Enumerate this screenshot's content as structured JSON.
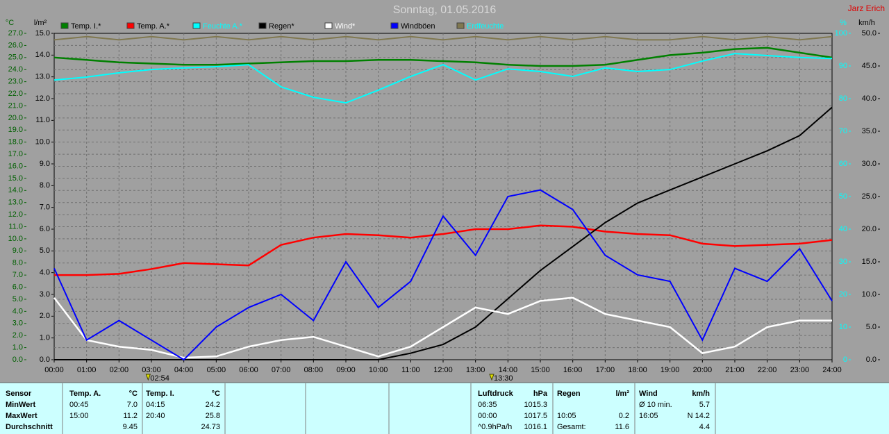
{
  "chart_data": {
    "type": "line",
    "title": "Sonntag, 01.05.2016",
    "author": "Jarz Erich",
    "x": [
      0,
      1,
      2,
      3,
      4,
      5,
      6,
      7,
      8,
      9,
      10,
      11,
      12,
      13,
      14,
      15,
      16,
      17,
      18,
      19,
      20,
      21,
      22,
      23,
      24
    ],
    "xlim": [
      0,
      24
    ],
    "xticks": [
      {
        "value": 0,
        "label": "00:00"
      },
      {
        "value": 1,
        "label": "01:00"
      },
      {
        "value": 2,
        "label": "02:00"
      },
      {
        "value": 3,
        "label": "03:00"
      },
      {
        "value": 4,
        "label": "04:00"
      },
      {
        "value": 5,
        "label": "05:00"
      },
      {
        "value": 6,
        "label": "06:00"
      },
      {
        "value": 7,
        "label": "07:00"
      },
      {
        "value": 8,
        "label": "08:00"
      },
      {
        "value": 9,
        "label": "09:00"
      },
      {
        "value": 10,
        "label": "10:00"
      },
      {
        "value": 11,
        "label": "11:00"
      },
      {
        "value": 12,
        "label": "12:00"
      },
      {
        "value": 13,
        "label": "13:00"
      },
      {
        "value": 14,
        "label": "14:00"
      },
      {
        "value": 15,
        "label": "15:00"
      },
      {
        "value": 16,
        "label": "16:00"
      },
      {
        "value": 17,
        "label": "17:00"
      },
      {
        "value": 18,
        "label": "18:00"
      },
      {
        "value": 19,
        "label": "19:00"
      },
      {
        "value": 20,
        "label": "20:00"
      },
      {
        "value": 21,
        "label": "21:00"
      },
      {
        "value": 22,
        "label": "22:00"
      },
      {
        "value": 23,
        "label": "23:00"
      },
      {
        "value": 24,
        "label": "24:00"
      }
    ],
    "y_label": "°C",
    "ylim": [
      0,
      27
    ],
    "yticks": [
      {
        "value": 27,
        "label": "27.0"
      },
      {
        "value": 26,
        "label": "26.0"
      },
      {
        "value": 25,
        "label": "25.0"
      },
      {
        "value": 24,
        "label": "24.0"
      },
      {
        "value": 23,
        "label": "23.0"
      },
      {
        "value": 22,
        "label": "22.0"
      },
      {
        "value": 21,
        "label": "21.0"
      },
      {
        "value": 20,
        "label": "20.0"
      },
      {
        "value": 19,
        "label": "19.0"
      },
      {
        "value": 18,
        "label": "18.0"
      },
      {
        "value": 17,
        "label": "17.0"
      },
      {
        "value": 16,
        "label": "16.0"
      },
      {
        "value": 15,
        "label": "15.0"
      },
      {
        "value": 14,
        "label": "14.0"
      },
      {
        "value": 13,
        "label": "13.0"
      },
      {
        "value": 12,
        "label": "12.0"
      },
      {
        "value": 11,
        "label": "11.0"
      },
      {
        "value": 10,
        "label": "10.0"
      },
      {
        "value": 9,
        "label": "9.0"
      },
      {
        "value": 8,
        "label": "8.0"
      },
      {
        "value": 7,
        "label": "7.0"
      },
      {
        "value": 6,
        "label": "6.0"
      },
      {
        "value": 5,
        "label": "5.0"
      },
      {
        "value": 4,
        "label": "4.0"
      },
      {
        "value": 3,
        "label": "3.0"
      },
      {
        "value": 2,
        "label": "2.0"
      },
      {
        "value": 1,
        "label": "1.0"
      },
      {
        "value": 0,
        "label": "0.0"
      }
    ],
    "y2_label": "l/m²",
    "y2lim": [
      0,
      15
    ],
    "y2ticks": [
      {
        "value": 15,
        "label": "15.0"
      },
      {
        "value": 14,
        "label": "14.0"
      },
      {
        "value": 13,
        "label": "13.0"
      },
      {
        "value": 12,
        "label": "12.0"
      },
      {
        "value": 11,
        "label": "11.0"
      },
      {
        "value": 10,
        "label": "10.0"
      },
      {
        "value": 9,
        "label": "9.0"
      },
      {
        "value": 8,
        "label": "8.0"
      },
      {
        "value": 7,
        "label": "7.0"
      },
      {
        "value": 6,
        "label": "6.0"
      },
      {
        "value": 5,
        "label": "5.0"
      },
      {
        "value": 4,
        "label": "4.0"
      },
      {
        "value": 3,
        "label": "3.0"
      },
      {
        "value": 2,
        "label": "2.0"
      },
      {
        "value": 1,
        "label": "1.0"
      },
      {
        "value": 0,
        "label": "0.0"
      }
    ],
    "y3_label": "%",
    "y3lim": [
      0,
      100
    ],
    "y3ticks": [
      100,
      90,
      80,
      70,
      60,
      50,
      40,
      30,
      20,
      10,
      0
    ],
    "y4_label": "km/h",
    "y4lim": [
      0,
      50
    ],
    "y4ticks": [
      {
        "value": 50,
        "label": "50.0"
      },
      {
        "value": 45,
        "label": "45.0"
      },
      {
        "value": 40,
        "label": "40.0"
      },
      {
        "value": 35,
        "label": "35.0"
      },
      {
        "value": 30,
        "label": "30.0"
      },
      {
        "value": 25,
        "label": "25.0"
      },
      {
        "value": 20,
        "label": "20.0"
      },
      {
        "value": 15,
        "label": "15.0"
      },
      {
        "value": 10,
        "label": "10.0"
      },
      {
        "value": 5,
        "label": "5.0"
      },
      {
        "value": 0,
        "label": "0.0"
      }
    ],
    "grid": true,
    "annotations": [
      {
        "text": "02:54",
        "x": 2.9
      },
      {
        "text": "13:30",
        "x": 13.5
      }
    ],
    "series": [
      {
        "name": "Temp. I.*",
        "color": "#008000",
        "axis": "y",
        "values": [
          25.0,
          24.8,
          24.6,
          24.5,
          24.4,
          24.4,
          24.5,
          24.6,
          24.7,
          24.7,
          24.8,
          24.8,
          24.7,
          24.6,
          24.4,
          24.3,
          24.3,
          24.4,
          24.8,
          25.2,
          25.4,
          25.7,
          25.8,
          25.4,
          25.0
        ]
      },
      {
        "name": "Temp. A.*",
        "color": "#ff0000",
        "axis": "y",
        "values": [
          7.0,
          7.0,
          7.1,
          7.5,
          8.0,
          7.9,
          7.8,
          9.5,
          10.1,
          10.4,
          10.3,
          10.1,
          10.4,
          10.8,
          10.8,
          11.1,
          11.0,
          10.6,
          10.4,
          10.3,
          9.6,
          9.4,
          9.5,
          9.6,
          9.9
        ]
      },
      {
        "name": "Feuchte A.*",
        "color": "#00ffff",
        "axis": "y3",
        "values": [
          85.7,
          86.6,
          87.9,
          88.9,
          89.4,
          89.8,
          90.4,
          83.6,
          80.4,
          78.7,
          82.6,
          86.8,
          90.4,
          85.7,
          89.1,
          88.3,
          86.8,
          89.4,
          88.3,
          88.9,
          91.5,
          93.8,
          93.2,
          92.6,
          92.3
        ]
      },
      {
        "name": "Regen*",
        "color": "#000000",
        "axis": "y2",
        "values": [
          0,
          0,
          0,
          0,
          0,
          0,
          0,
          0,
          0,
          0,
          0,
          0.3,
          0.7,
          1.5,
          2.8,
          4.1,
          5.2,
          6.3,
          7.2,
          7.8,
          8.4,
          9.0,
          9.6,
          10.3,
          11.6
        ]
      },
      {
        "name": "Wind*",
        "color": "#ffffff",
        "axis": "y4",
        "values": [
          9.5,
          3,
          2,
          1.5,
          0.3,
          0.5,
          2,
          3,
          3.5,
          2,
          0.5,
          2,
          5,
          8,
          7,
          9,
          9.5,
          7,
          6,
          5,
          1,
          2,
          5,
          6,
          6
        ]
      },
      {
        "name": "Windböen",
        "color": "#0000ff",
        "axis": "y4",
        "values": [
          14,
          3,
          6,
          3,
          0,
          5,
          8,
          10,
          6,
          15,
          8,
          12,
          22,
          16,
          25,
          26,
          23,
          16,
          13,
          12,
          3,
          14,
          12,
          17,
          9
        ]
      },
      {
        "name": "Erdfeuchte",
        "color": "#807850",
        "axis": "y3",
        "values": [
          98,
          99,
          98,
          99,
          98,
          99,
          98,
          99,
          98,
          99,
          98,
          99,
          98,
          99,
          98,
          99,
          98,
          99,
          98,
          98,
          99,
          98,
          99,
          98,
          99
        ]
      }
    ]
  },
  "table": {
    "header": [
      "Sensor",
      "Temp. A.",
      "°C",
      "Temp. I.",
      "°C",
      "Luftdruck",
      "hPa",
      "Regen",
      "l/m²",
      "Wind",
      "km/h"
    ],
    "rows": [
      [
        "MinWert",
        "00:45",
        "7.0",
        "04:15",
        "24.2",
        "06:35",
        "1015.3",
        null,
        null,
        "Ø 10 min.",
        "5.7"
      ],
      [
        "MaxWert",
        "15:00",
        "11.2",
        "20:40",
        "25.8",
        "00:00",
        "1017.5",
        "10:05",
        "0.2",
        "16:05",
        "N 14.2"
      ],
      [
        "Durchschnitt",
        null,
        "9.45",
        null,
        "24.73",
        "^0.9hPa/h",
        "1016.1",
        "Gesamt:",
        "11.6",
        null,
        "4.4"
      ]
    ]
  }
}
